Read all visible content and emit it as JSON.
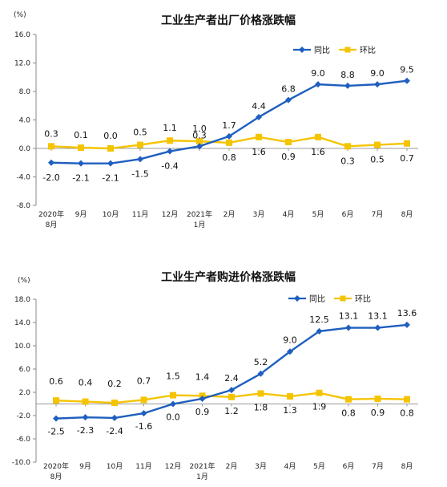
{
  "chart_data": [
    {
      "type": "line",
      "title": "工业生产者出厂价格涨跌幅",
      "unit": "(%)",
      "x": [
        "2020年\n8月",
        "9月",
        "10月",
        "11月",
        "12月",
        "2021年\n1月",
        "2月",
        "3月",
        "4月",
        "5月",
        "6月",
        "7月",
        "8月"
      ],
      "ylim": [
        -8.0,
        16.0
      ],
      "yticks": [
        "16.0",
        "12.0",
        "8.0",
        "4.0",
        "0.0",
        "-4.0",
        "-8.0"
      ],
      "legend_position": "top-right",
      "series": [
        {
          "name": "同比",
          "color": "#1F5FBF",
          "marker": "diamond",
          "values": [
            -2.0,
            -2.1,
            -2.1,
            -1.5,
            -0.4,
            0.3,
            1.7,
            4.4,
            6.8,
            9.0,
            8.8,
            9.0,
            9.5
          ],
          "labels": [
            "-2.0",
            "-2.1",
            "-2.1",
            "-1.5",
            "-0.4",
            "0.3",
            "1.7",
            "4.4",
            "6.8",
            "9.0",
            "8.8",
            "9.0",
            "9.5"
          ]
        },
        {
          "name": "环比",
          "color": "#F5C400",
          "marker": "square",
          "values": [
            0.3,
            0.1,
            0.0,
            0.5,
            1.1,
            1.0,
            0.8,
            1.6,
            0.9,
            1.6,
            0.3,
            0.5,
            0.7
          ],
          "labels": [
            "0.3",
            "0.1",
            "0.0",
            "0.5",
            "1.1",
            "1.0",
            "0.8",
            "1.6",
            "0.9",
            "1.6",
            "0.3",
            "0.5",
            "0.7"
          ]
        }
      ]
    },
    {
      "type": "line",
      "title": "工业生产者购进价格涨跌幅",
      "unit": "(%)",
      "x": [
        "2020年\n8月",
        "9月",
        "10月",
        "11月",
        "12月",
        "2021年\n1月",
        "2月",
        "3月",
        "4月",
        "5月",
        "6月",
        "7月",
        "8月"
      ],
      "ylim": [
        -10.0,
        18.0
      ],
      "yticks": [
        "18.0",
        "14.0",
        "10.0",
        "6.0",
        "2.0",
        "-2.0",
        "-6.0",
        "-10.0"
      ],
      "legend_position": "top-right",
      "series": [
        {
          "name": "同比",
          "color": "#1F5FBF",
          "marker": "diamond",
          "values": [
            -2.5,
            -2.3,
            -2.4,
            -1.6,
            0.0,
            0.9,
            2.4,
            5.2,
            9.0,
            12.5,
            13.1,
            13.1,
            13.6
          ],
          "labels": [
            "-2.5",
            "-2.3",
            "-2.4",
            "-1.6",
            "0.0",
            "0.9",
            "2.4",
            "5.2",
            "9.0",
            "12.5",
            "13.1",
            "13.1",
            "13.6"
          ]
        },
        {
          "name": "环比",
          "color": "#F5C400",
          "marker": "square",
          "values": [
            0.6,
            0.4,
            0.2,
            0.7,
            1.5,
            1.4,
            1.2,
            1.8,
            1.3,
            1.9,
            0.8,
            0.9,
            0.8
          ],
          "labels": [
            "0.6",
            "0.4",
            "0.2",
            "0.7",
            "1.5",
            "1.4",
            "1.2",
            "1.8",
            "1.3",
            "1.9",
            "0.8",
            "0.9",
            "0.8"
          ]
        }
      ]
    }
  ]
}
